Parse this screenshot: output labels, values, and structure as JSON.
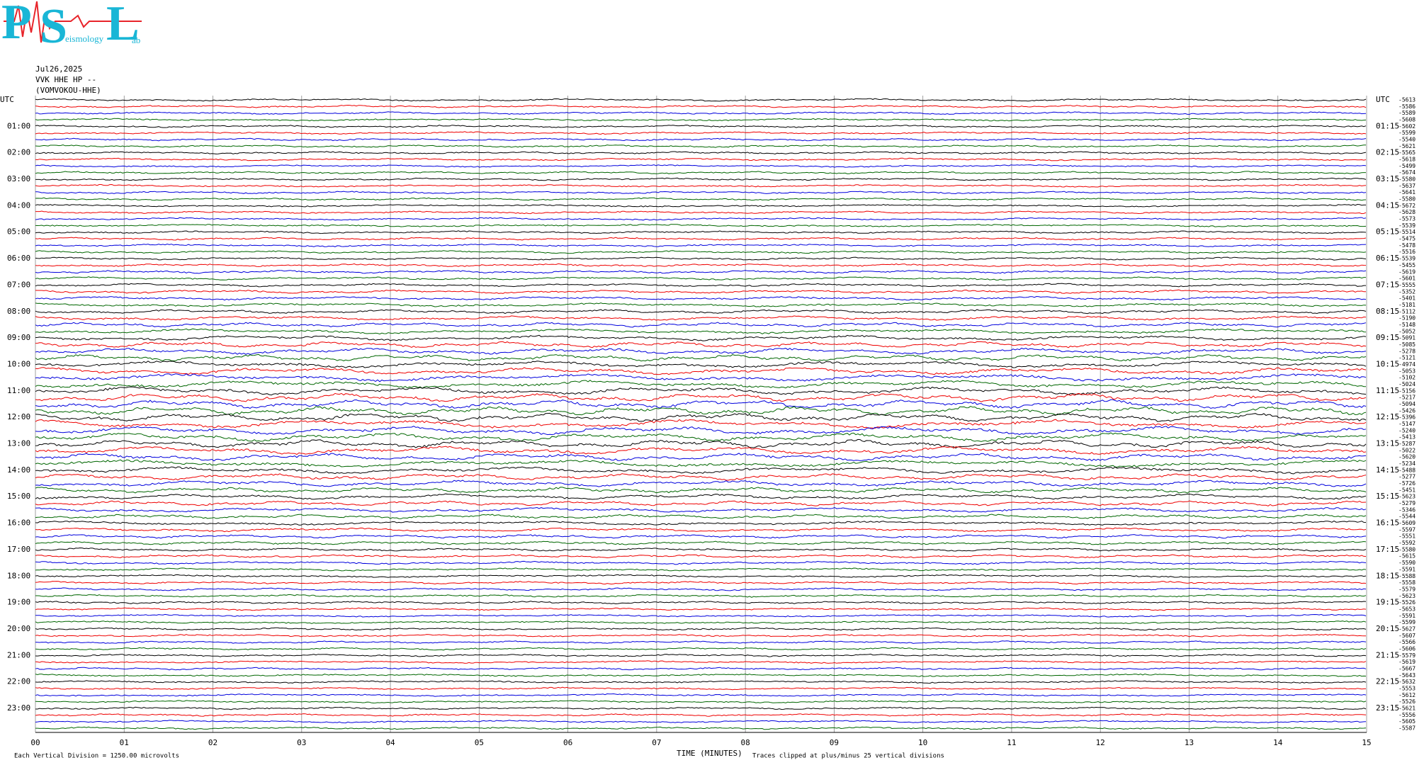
{
  "logo": {
    "letters": [
      "P",
      "S",
      "L"
    ],
    "small": [
      "eismology",
      "ab"
    ]
  },
  "header": {
    "date": "Jul26,2025",
    "station": "VVK HHE HP --",
    "name": "(VOMVOKOU-HHE)"
  },
  "left_labels": [
    "UTC",
    "01:00",
    "02:00",
    "03:00",
    "04:00",
    "05:00",
    "06:00",
    "07:00",
    "08:00",
    "09:00",
    "10:00",
    "11:00",
    "12:00",
    "13:00",
    "14:00",
    "15:00",
    "16:00",
    "17:00",
    "18:00",
    "19:00",
    "20:00",
    "21:00",
    "22:00",
    "23:00"
  ],
  "right_labels": [
    "UTC",
    "01:15",
    "02:15",
    "03:15",
    "04:15",
    "05:15",
    "06:15",
    "07:15",
    "08:15",
    "09:15",
    "10:15",
    "11:15",
    "12:15",
    "13:15",
    "14:15",
    "15:15",
    "16:15",
    "17:15",
    "18:15",
    "19:15",
    "20:15",
    "21:15",
    "22:15",
    "23:15"
  ],
  "trace_offsets": [
    "-5613",
    "-5586",
    "-5589",
    "-5608",
    "-5602",
    "-5599",
    "-5540",
    "-5621",
    "-5565",
    "-5618",
    "-5499",
    "-5674",
    "-5580",
    "-5637",
    "-5641",
    "-5580",
    "-5672",
    "-5628",
    "-5573",
    "-5539",
    "-5514",
    "-5475",
    "-5478",
    "-5516",
    "-5539",
    "-5455",
    "-5619",
    "-5601",
    "-5555",
    "-5352",
    "-5401",
    "-5181",
    "-5112",
    "-5190",
    "-5148",
    "-5052",
    "-5091",
    "-5085",
    "-5278",
    "-5121",
    "-4974",
    "-5053",
    "-5102",
    "-5024",
    "-5156",
    "-5217",
    "-5094",
    "-5426",
    "-5396",
    "-5147",
    "-5240",
    "-5413",
    "-5287",
    "-5022",
    "-5620",
    "-5234",
    "-5488",
    "-5277",
    "-5726",
    "-5451",
    "-5623",
    "-5279",
    "-5346",
    "-5544",
    "-5609",
    "-5597",
    "-5551",
    "-5592",
    "-5580",
    "-5615",
    "-5590",
    "-5591",
    "-5588",
    "-5558",
    "-5579",
    "-5623",
    "-5526",
    "-5653",
    "-5591",
    "-5599",
    "-5627",
    "-5607",
    "-5566",
    "-5606",
    "-5579",
    "-5619",
    "-5667",
    "-5643",
    "-5632",
    "-5553",
    "-5612",
    "-5526",
    "-5621",
    "-5556",
    "-5605",
    "-5587"
  ],
  "x_axis": {
    "ticks": [
      "00",
      "01",
      "02",
      "03",
      "04",
      "05",
      "06",
      "07",
      "08",
      "09",
      "10",
      "11",
      "12",
      "13",
      "14",
      "15"
    ],
    "label": "TIME (MINUTES)"
  },
  "footer": {
    "left": "Each Vertical Division = 1250.00 microvolts",
    "right": "Traces clipped at plus/minus 25 vertical divisions"
  }
}
